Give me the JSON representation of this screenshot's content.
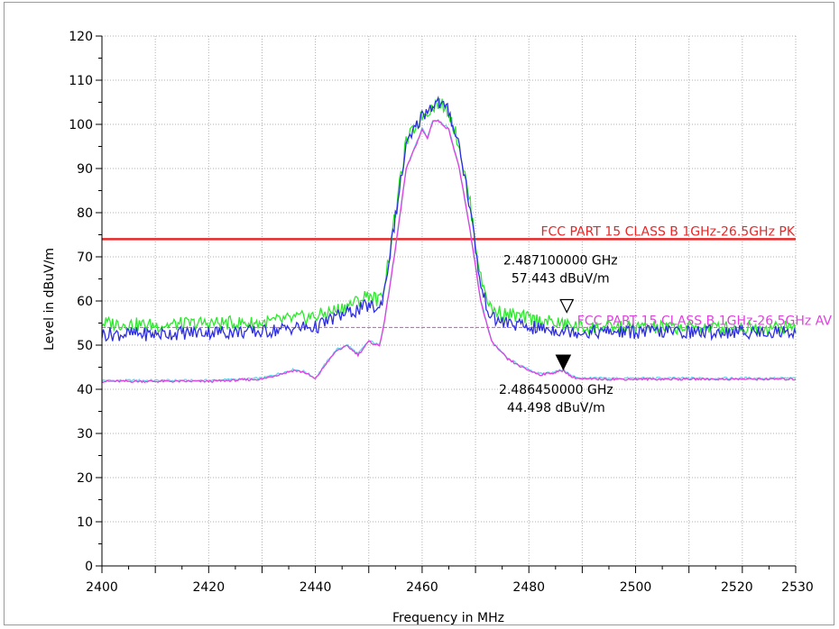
{
  "chart_data": {
    "type": "line",
    "xlabel": "Frequency in MHz",
    "ylabel": "Level in dBuV/m",
    "xlim": [
      2400,
      2530
    ],
    "ylim": [
      0,
      120
    ],
    "x_ticks": [
      "2400",
      "2420",
      "2440",
      "2460",
      "2480",
      "2500",
      "2520",
      "2530"
    ],
    "y_ticks": [
      "0",
      "10",
      "20",
      "30",
      "40",
      "50",
      "60",
      "70",
      "80",
      "90",
      "100",
      "110",
      "120"
    ],
    "grid": true,
    "colors": {
      "peak_green": "#2ee82e",
      "peak_blue": "#2e2ee0",
      "avg_cyan": "#5fd8f0",
      "avg_magenta": "#e040e0",
      "limit_pk": "#e82828",
      "limit_av": "#e040e0"
    },
    "limit_lines": [
      {
        "label": "FCC PART 15 CLASS B 1GHz-26.5GHz PK",
        "value": 74
      },
      {
        "label": "FCC PART 15 CLASS B 1GHz-26.5GHz AV",
        "value": 54
      }
    ],
    "series": [
      {
        "key": "peak_green",
        "color": "#2ee82e",
        "x": [
          2400,
          2410,
          2420,
          2430,
          2436,
          2440,
          2444,
          2448,
          2450,
          2452,
          2453,
          2455,
          2457,
          2460,
          2462,
          2463,
          2465,
          2467,
          2469,
          2471,
          2473,
          2476,
          2480,
          2490,
          2500,
          2510,
          2520,
          2530
        ],
        "y": [
          55,
          54.5,
          55,
          55,
          56,
          56.5,
          58,
          60,
          61.5,
          60,
          64,
          80,
          96,
          102,
          104,
          105,
          103,
          95,
          82,
          65,
          58,
          57,
          56,
          54,
          54,
          54,
          54,
          54
        ]
      },
      {
        "key": "peak_blue",
        "color": "#2e2ee0",
        "x": [
          2400,
          2410,
          2420,
          2430,
          2436,
          2440,
          2444,
          2448,
          2450,
          2452,
          2453,
          2455,
          2457,
          2460,
          2462,
          2463,
          2465,
          2467,
          2469,
          2471,
          2473,
          2476,
          2480,
          2490,
          2500,
          2510,
          2520,
          2530
        ],
        "y": [
          52.5,
          52.5,
          53,
          53,
          54,
          54,
          56.5,
          58,
          59,
          58,
          63,
          79,
          95,
          102,
          104.5,
          105,
          103,
          95,
          81,
          63,
          56,
          55,
          54,
          53,
          53,
          53,
          53,
          53
        ]
      },
      {
        "key": "avg_cyan",
        "color": "#5fd8f0",
        "x": [
          2400,
          2410,
          2420,
          2430,
          2436,
          2438,
          2440,
          2442,
          2444,
          2446,
          2448,
          2450,
          2452,
          2453,
          2455,
          2457,
          2460,
          2461,
          2462,
          2463,
          2465,
          2467,
          2469,
          2471,
          2473,
          2476,
          2479,
          2482,
          2485,
          2486.5,
          2488,
          2490,
          2500,
          2510,
          2520,
          2530
        ],
        "y": [
          42,
          42,
          42,
          42.5,
          44.5,
          44,
          42.5,
          46,
          49,
          50,
          48,
          51,
          50,
          56,
          72,
          90,
          99,
          97,
          101,
          101,
          99,
          90,
          76,
          60,
          51,
          47,
          45,
          43.5,
          44,
          44.5,
          43,
          42.5,
          42.5,
          42.5,
          42.5,
          42.5
        ]
      },
      {
        "key": "avg_magenta",
        "color": "#e040e0",
        "x": [
          2400,
          2410,
          2420,
          2430,
          2436,
          2438,
          2440,
          2442,
          2444,
          2446,
          2448,
          2450,
          2452,
          2453,
          2455,
          2457,
          2460,
          2461,
          2462,
          2463,
          2465,
          2467,
          2469,
          2471,
          2473,
          2476,
          2479,
          2482,
          2485,
          2486.5,
          2488,
          2490,
          2500,
          2510,
          2520,
          2530
        ],
        "y": [
          41.8,
          41.8,
          41.8,
          42.3,
          44.3,
          43.8,
          42.3,
          45.8,
          48.8,
          49.8,
          47.8,
          50.8,
          49.8,
          55.8,
          71.8,
          89.8,
          98.8,
          96.8,
          100.8,
          100.8,
          98.8,
          89.8,
          75.8,
          59.8,
          50.8,
          46.8,
          44.8,
          43.3,
          43.8,
          44.3,
          42.8,
          42.3,
          42.3,
          42.3,
          42.3,
          42.3
        ]
      }
    ],
    "markers": [
      {
        "frequency_label": "2.487100000 GHz",
        "level_label": "57.443 dBuV/m",
        "x": 2487.1,
        "y": 57.443,
        "style": "open-triangle"
      },
      {
        "frequency_label": "2.486450000 GHz",
        "level_label": "44.498 dBuV/m",
        "x": 2486.45,
        "y": 44.498,
        "style": "filled-triangle"
      }
    ]
  }
}
